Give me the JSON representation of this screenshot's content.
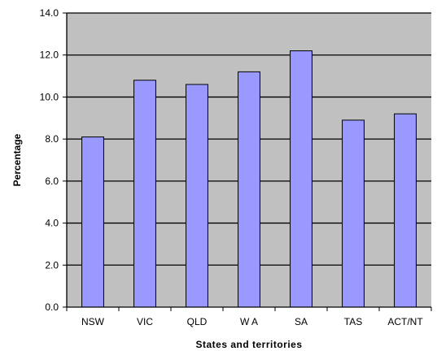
{
  "chart_data": {
    "type": "bar",
    "title": "",
    "xlabel": "States and territories",
    "ylabel": "Percentage",
    "categories": [
      "NSW",
      "VIC",
      "QLD",
      "W A",
      "SA",
      "TAS",
      "ACT/NT"
    ],
    "values": [
      8.1,
      10.8,
      10.6,
      11.2,
      12.2,
      8.9,
      9.2
    ],
    "ylim": [
      0,
      14
    ],
    "yticks": [
      0,
      2,
      4,
      6,
      8,
      10,
      12,
      14
    ],
    "ytick_labels": [
      "0.0",
      "2.0",
      "4.0",
      "6.0",
      "8.0",
      "10.0",
      "12.0",
      "14.0"
    ],
    "grid": true,
    "colors": {
      "plot_background": "#c0c0c0",
      "bar_fill": "#9999ff",
      "bar_stroke": "#000000",
      "gridline": "#000000"
    }
  }
}
